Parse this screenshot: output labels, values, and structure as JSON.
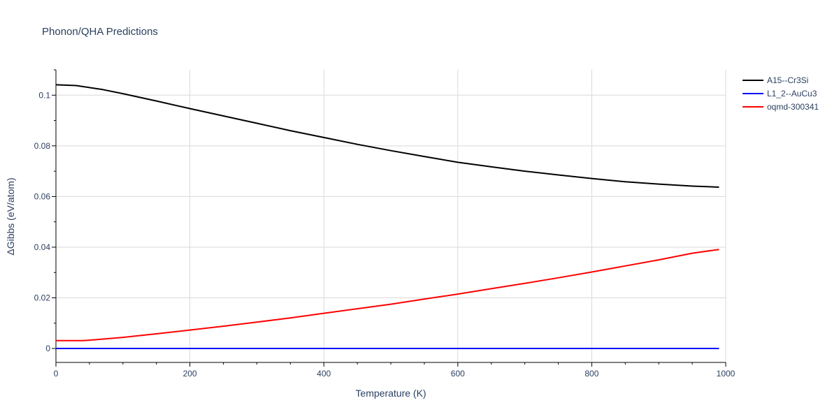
{
  "chart_data": {
    "type": "line",
    "title": "Phonon/QHA Predictions",
    "xlabel": "Temperature (K)",
    "ylabel": "ΔGibbs (eV/atom)",
    "xlim": [
      0,
      1000
    ],
    "ylim": [
      -0.0055,
      0.11
    ],
    "x_ticks": [
      0,
      200,
      400,
      600,
      800,
      1000
    ],
    "y_ticks": [
      0,
      0.02,
      0.04,
      0.06,
      0.08,
      0.1
    ],
    "x_tick_labels": [
      "0",
      "200",
      "400",
      "600",
      "800",
      "1000"
    ],
    "y_tick_labels": [
      "0",
      "0.02",
      "0.04",
      "0.06",
      "0.08",
      "0.1"
    ],
    "grid": true,
    "legend_position": "top-right",
    "series": [
      {
        "name": "A15--Cr3Si",
        "color": "#000000",
        "x": [
          0,
          30,
          70,
          100,
          150,
          200,
          250,
          300,
          350,
          400,
          450,
          500,
          550,
          600,
          650,
          700,
          750,
          800,
          850,
          900,
          950,
          990
        ],
        "y": [
          0.1041,
          0.1038,
          0.1022,
          0.1006,
          0.0977,
          0.0947,
          0.0918,
          0.0889,
          0.086,
          0.0833,
          0.0806,
          0.0781,
          0.0758,
          0.0735,
          0.0717,
          0.07,
          0.0685,
          0.0671,
          0.0658,
          0.0649,
          0.0641,
          0.0637
        ]
      },
      {
        "name": "L1_2--AuCu3",
        "color": "#0000ff",
        "x": [
          0,
          990
        ],
        "y": [
          0,
          0
        ]
      },
      {
        "name": "oqmd-300341",
        "color": "#ff0000",
        "x": [
          0,
          20,
          40,
          60,
          100,
          150,
          200,
          250,
          300,
          350,
          400,
          450,
          500,
          550,
          600,
          650,
          700,
          750,
          800,
          850,
          900,
          950,
          990
        ],
        "y": [
          0.0031,
          0.0031,
          0.0031,
          0.0035,
          0.0044,
          0.0058,
          0.0073,
          0.0088,
          0.0104,
          0.0121,
          0.0139,
          0.0157,
          0.0175,
          0.0195,
          0.0215,
          0.0236,
          0.0257,
          0.0279,
          0.0302,
          0.0326,
          0.035,
          0.0376,
          0.0391
        ]
      }
    ]
  }
}
